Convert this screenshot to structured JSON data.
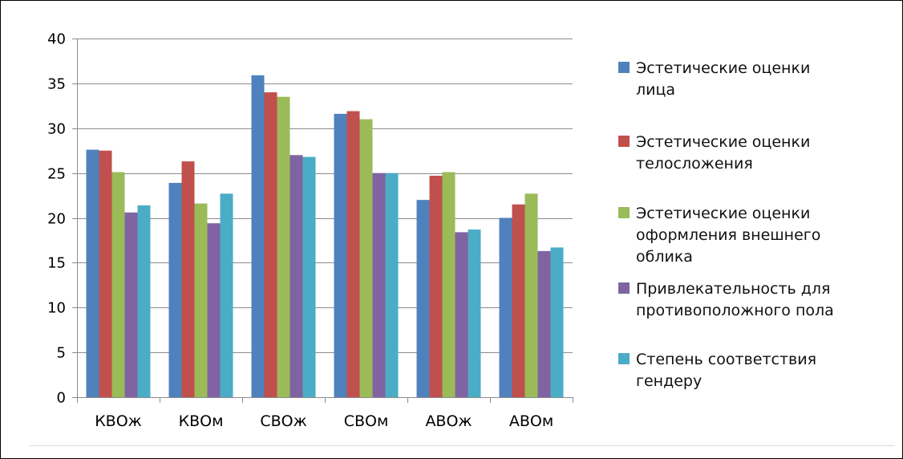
{
  "chart_data": {
    "type": "bar",
    "title": "",
    "xlabel": "",
    "ylabel": "",
    "ylim": [
      0,
      40
    ],
    "yticks": [
      0,
      5,
      10,
      15,
      20,
      25,
      30,
      35,
      40
    ],
    "grid": true,
    "legend_position": "right",
    "categories": [
      "КВОж",
      "КВОм",
      "СВОж",
      "СВОм",
      "АВОж",
      "АВОм"
    ],
    "series": [
      {
        "name": "Эстетические оценки лица",
        "legend_lines": [
          "Эстетические оценки",
          "лица"
        ],
        "color": "#4f81bd",
        "values": [
          27.6,
          23.9,
          35.9,
          31.6,
          22.0,
          20.0
        ]
      },
      {
        "name": "Эстетические оценки телосложения",
        "legend_lines": [
          "Эстетические оценки",
          "телосложения"
        ],
        "color": "#c0504d",
        "values": [
          27.5,
          26.3,
          34.0,
          31.9,
          24.7,
          21.5
        ]
      },
      {
        "name": "Эстетические оценки оформления внешнего облика",
        "legend_lines": [
          "Эстетические оценки",
          "оформления внешнего",
          "облика"
        ],
        "color": "#9bbb59",
        "values": [
          25.1,
          21.6,
          33.5,
          31.0,
          25.1,
          22.7
        ]
      },
      {
        "name": "Привлекательность для противоположного пола",
        "legend_lines": [
          "Привлекательность для",
          "противоположного пола"
        ],
        "color": "#8064a2",
        "values": [
          20.6,
          19.4,
          27.0,
          25.0,
          18.4,
          16.3
        ]
      },
      {
        "name": "Степень соответствия гендеру",
        "legend_lines": [
          "Степень соответствия",
          "гендеру"
        ],
        "color": "#4bacc6",
        "values": [
          21.4,
          22.7,
          26.8,
          25.0,
          18.7,
          16.7
        ]
      }
    ]
  }
}
